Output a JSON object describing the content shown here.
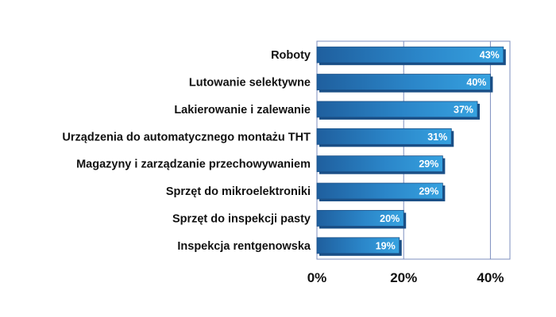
{
  "chart_data": {
    "type": "bar",
    "orientation": "horizontal",
    "categories": [
      "Roboty",
      "Lutowanie selektywne",
      "Lakierowanie i zalewanie",
      "Urządzenia do automatycznego montażu THT",
      "Magazyny i zarządzanie przechowywaniem",
      "Sprzęt do mikroelektroniki",
      "Sprzęt do inspekcji pasty",
      "Inspekcja rentgenowska"
    ],
    "values": [
      43,
      40,
      37,
      31,
      29,
      29,
      20,
      19
    ],
    "value_labels": [
      "43%",
      "40%",
      "37%",
      "31%",
      "29%",
      "29%",
      "20%",
      "19%"
    ],
    "x_ticks": [
      0,
      20,
      40
    ],
    "x_tick_labels": [
      "0%",
      "20%",
      "40%"
    ],
    "xlim": [
      0,
      44.5
    ],
    "grid": true,
    "bar_color": "#2b86c9",
    "bar_color_dark": "#1a4f86",
    "title": "",
    "xlabel": "",
    "ylabel": ""
  }
}
